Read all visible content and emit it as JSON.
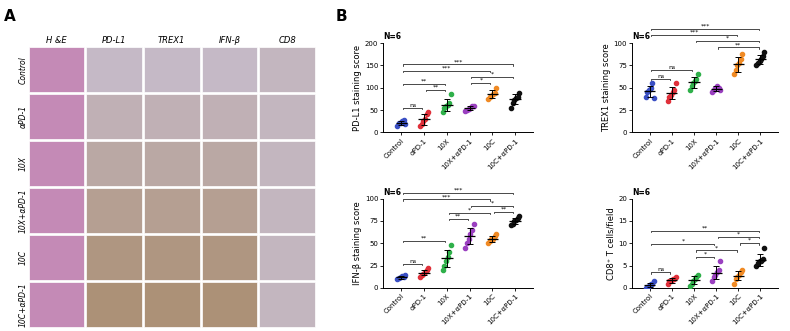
{
  "figure": {
    "panel_labels": [
      "A",
      "B"
    ],
    "histology": {
      "columns": [
        "H &E",
        "PD-L1",
        "TREX1",
        "IFN-β",
        "CD8"
      ],
      "rows": [
        "Control",
        "αPD-1",
        "10X",
        "10X+αPD-1",
        "10C",
        "10C+αPD-1"
      ]
    }
  },
  "chart_data": [
    {
      "type": "scatter",
      "annotation": "N=6",
      "y_label": "PD-L1 staining score",
      "categories": [
        "Control",
        "αPD-1",
        "10X",
        "10X+αPD-1",
        "10C",
        "10C+αPD-1"
      ],
      "values": [
        [
          15,
          20,
          22,
          25,
          28,
          18
        ],
        [
          15,
          18,
          25,
          30,
          42,
          45
        ],
        [
          45,
          55,
          60,
          62,
          65,
          85
        ],
        [
          48,
          50,
          52,
          55,
          58,
          60
        ],
        [
          75,
          80,
          82,
          85,
          88,
          100
        ],
        [
          55,
          65,
          72,
          78,
          80,
          88
        ]
      ],
      "means": [
        21,
        29,
        62,
        54,
        85,
        74
      ],
      "errors": [
        4,
        12,
        13,
        4,
        9,
        11
      ],
      "colors": [
        "#3a4fc4",
        "#e0303a",
        "#2fb04a",
        "#9a40c0",
        "#f08a24",
        "#111111"
      ],
      "marker": "o",
      "ylim": [
        0,
        200
      ],
      "yticks": [
        0,
        50,
        100,
        150,
        200
      ],
      "significance": [
        {
          "from": "Control",
          "to": "αPD-1",
          "label": "ns"
        },
        {
          "from": "Control",
          "to": "10X",
          "label": "**"
        },
        {
          "from": "αPD-1",
          "to": "10X",
          "label": "**"
        },
        {
          "from": "Control",
          "to": "10C",
          "label": "***"
        },
        {
          "from": "Control",
          "to": "10C+αPD-1",
          "label": "***"
        },
        {
          "from": "10X+αPD-1",
          "to": "10C",
          "label": "*"
        },
        {
          "from": "10X+αPD-1",
          "to": "10C+αPD-1",
          "label": "*"
        }
      ]
    },
    {
      "type": "scatter",
      "annotation": "N=6",
      "y_label": "TREX1 staining score",
      "categories": [
        "Control",
        "αPD-1",
        "10X",
        "10X+αPD-1",
        "10C",
        "10C+αPD-1"
      ],
      "values": [
        [
          40,
          45,
          48,
          50,
          55,
          38
        ],
        [
          35,
          40,
          42,
          45,
          48,
          55
        ],
        [
          48,
          52,
          55,
          58,
          60,
          65
        ],
        [
          45,
          48,
          50,
          52,
          50,
          47
        ],
        [
          65,
          70,
          75,
          78,
          82,
          88
        ],
        [
          75,
          78,
          80,
          82,
          85,
          90
        ]
      ],
      "means": [
        46,
        44,
        56,
        49,
        76,
        82
      ],
      "errors": [
        6,
        7,
        6,
        3,
        8,
        5
      ],
      "colors": [
        "#3a4fc4",
        "#e0303a",
        "#2fb04a",
        "#9a40c0",
        "#f08a24",
        "#111111"
      ],
      "marker": "o",
      "ylim": [
        0,
        100
      ],
      "yticks": [
        0,
        25,
        50,
        75,
        100
      ],
      "significance": [
        {
          "from": "Control",
          "to": "αPD-1",
          "label": "ns"
        },
        {
          "from": "Control",
          "to": "10X",
          "label": "ns"
        },
        {
          "from": "Control",
          "to": "10C",
          "label": "***"
        },
        {
          "from": "Control",
          "to": "10C+αPD-1",
          "label": "***"
        },
        {
          "from": "10X",
          "to": "10C+αPD-1",
          "label": "*"
        },
        {
          "from": "10X+αPD-1",
          "to": "10C+αPD-1",
          "label": "**"
        }
      ]
    },
    {
      "type": "scatter",
      "annotation": "N=6",
      "y_label": "IFN-β staining score",
      "categories": [
        "Control",
        "αPD-1",
        "10X",
        "10X+αPD-1",
        "10C",
        "10C+αPD-1"
      ],
      "values": [
        [
          10,
          11,
          12,
          13,
          12,
          14
        ],
        [
          12,
          15,
          16,
          18,
          20,
          22
        ],
        [
          20,
          25,
          30,
          35,
          40,
          48
        ],
        [
          45,
          50,
          55,
          60,
          65,
          72
        ],
        [
          50,
          52,
          55,
          55,
          58,
          60
        ],
        [
          70,
          72,
          75,
          76,
          78,
          80
        ]
      ],
      "means": [
        12,
        17,
        33,
        58,
        55,
        75
      ],
      "errors": [
        1.5,
        3,
        10,
        9,
        3.5,
        3.5
      ],
      "colors": [
        "#3a4fc4",
        "#e0303a",
        "#2fb04a",
        "#9a40c0",
        "#f08a24",
        "#111111"
      ],
      "marker": "o",
      "ylim": [
        0,
        100
      ],
      "yticks": [
        0,
        25,
        50,
        75,
        100
      ],
      "significance": [
        {
          "from": "Control",
          "to": "αPD-1",
          "label": "ns"
        },
        {
          "from": "Control",
          "to": "10X",
          "label": "**"
        },
        {
          "from": "10X",
          "to": "10X+αPD-1",
          "label": "**"
        },
        {
          "from": "10X",
          "to": "10C",
          "label": "*"
        },
        {
          "from": "Control",
          "to": "10C",
          "label": "***"
        },
        {
          "from": "Control",
          "to": "10C+αPD-1",
          "label": "***"
        },
        {
          "from": "10C",
          "to": "10C+αPD-1",
          "label": "**"
        },
        {
          "from": "10X+αPD-1",
          "to": "10C+αPD-1",
          "label": "*"
        }
      ]
    },
    {
      "type": "scatter",
      "annotation": "N=6",
      "y_label": "CD8⁺ T cells/field",
      "categories": [
        "Control",
        "αPD-1",
        "10X",
        "10X+αPD-1",
        "10C",
        "10C+αPD-1"
      ],
      "values": [
        [
          0,
          0.3,
          0.5,
          1,
          1,
          1.5
        ],
        [
          1,
          1.5,
          1.5,
          2,
          2,
          2.5
        ],
        [
          0.5,
          1,
          1.5,
          2,
          2.5,
          3
        ],
        [
          1.5,
          2.5,
          3,
          3.5,
          4,
          6
        ],
        [
          1,
          2,
          2.5,
          3,
          3.5,
          4
        ],
        [
          5,
          5.5,
          6,
          6,
          6.5,
          9
        ]
      ],
      "means": [
        0.7,
        1.7,
        1.7,
        3.4,
        2.7,
        6.3
      ],
      "errors": [
        0.5,
        0.5,
        0.9,
        1.5,
        1.0,
        1.4
      ],
      "colors": [
        "#3a4fc4",
        "#e0303a",
        "#2fb04a",
        "#9a40c0",
        "#f08a24",
        "#111111"
      ],
      "marker": "o",
      "ylim": [
        0,
        20
      ],
      "yticks": [
        0,
        5,
        10,
        15,
        20
      ],
      "significance": [
        {
          "from": "Control",
          "to": "αPD-1",
          "label": "ns"
        },
        {
          "from": "10X",
          "to": "10X+αPD-1",
          "label": "*"
        },
        {
          "from": "10X",
          "to": "10C",
          "label": "*"
        },
        {
          "from": "Control",
          "to": "10X+αPD-1",
          "label": "*"
        },
        {
          "from": "10C",
          "to": "10C+αPD-1",
          "label": "*"
        },
        {
          "from": "10X+αPD-1",
          "to": "10C+αPD-1",
          "label": "*"
        },
        {
          "from": "Control",
          "to": "10C+αPD-1",
          "label": "**"
        }
      ]
    }
  ]
}
